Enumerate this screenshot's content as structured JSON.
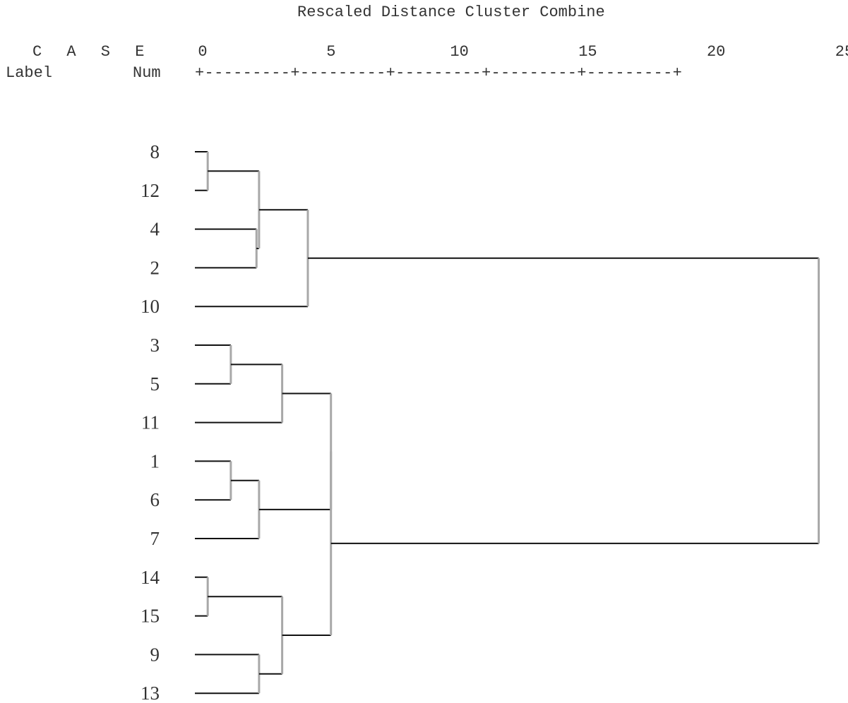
{
  "header": {
    "title": "Rescaled Distance Cluster Combine",
    "case_label": "C A S E",
    "label_label": "Label",
    "num_label": "Num",
    "axis_ruler": "+---------+---------+---------+---------+---------+"
  },
  "axis": {
    "ticks": [
      "0",
      "5",
      "10",
      "15",
      "20",
      "25"
    ],
    "range": [
      0,
      25
    ]
  },
  "cases": [
    "8",
    "12",
    "4",
    "2",
    "10",
    "3",
    "5",
    "11",
    "1",
    "6",
    "7",
    "14",
    "15",
    "9",
    "13"
  ],
  "merges": [
    {
      "a": "8",
      "b": "12",
      "distance": 0.5
    },
    {
      "a": "14",
      "b": "15",
      "distance": 0.5
    },
    {
      "a": "3",
      "b": "5",
      "distance": 1.4
    },
    {
      "a": "1",
      "b": "6",
      "distance": 1.4
    },
    {
      "a": "4",
      "b": "2",
      "distance": 2.4
    },
    {
      "a": "8+12",
      "b": "4+2",
      "distance": 2.5
    },
    {
      "a": "9",
      "b": "13",
      "distance": 2.5
    },
    {
      "a": "1+6",
      "b": "7",
      "distance": 2.5
    },
    {
      "a": "3+5",
      "b": "11",
      "distance": 3.4
    },
    {
      "a": "14+15",
      "b": "9+13",
      "distance": 3.4
    },
    {
      "a": "8+12+4+2",
      "b": "10",
      "distance": 4.4
    },
    {
      "a": "3+5+11",
      "b": "1+6+7",
      "distance": 5.3
    },
    {
      "a": "3+5+11+1+6+7",
      "b": "14+15+9+13",
      "distance": 5.3
    },
    {
      "a": "8+12+4+2+10",
      "b": "3+5+11+1+6+7+14+15+9+13",
      "distance": 24.3
    }
  ],
  "colors": {
    "horizontal_line": "#111111",
    "vertical_line": "#a8a8a8",
    "text": "#333333"
  }
}
